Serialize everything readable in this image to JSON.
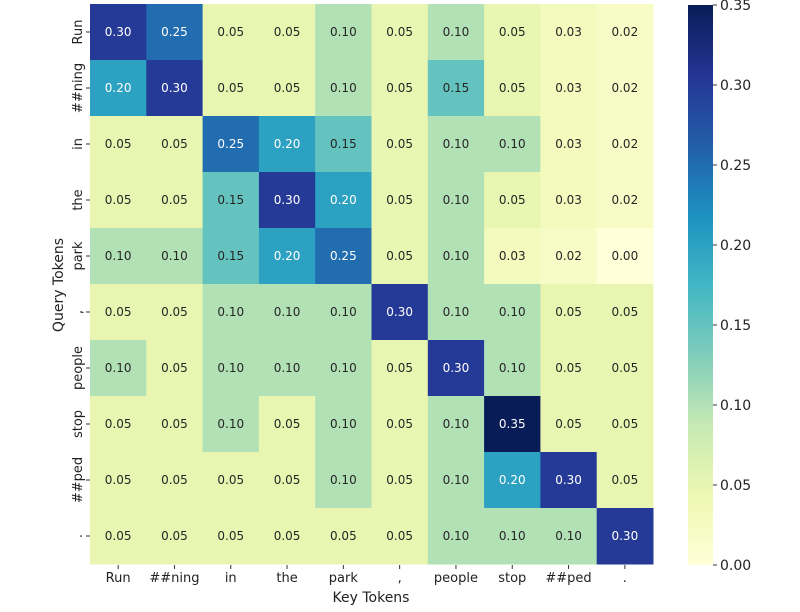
{
  "chart_data": {
    "type": "heatmap",
    "xlabel": "Key Tokens",
    "ylabel": "Query Tokens",
    "x_categories": [
      "Run",
      "##ning",
      "in",
      "the",
      "park",
      ",",
      "people",
      "stop",
      "##ped",
      "."
    ],
    "y_categories": [
      "Run",
      "##ning",
      "in",
      "the",
      "park",
      ",",
      "people",
      "stop",
      "##ped",
      "."
    ],
    "values": [
      [
        0.3,
        0.25,
        0.05,
        0.05,
        0.1,
        0.05,
        0.1,
        0.05,
        0.03,
        0.02
      ],
      [
        0.2,
        0.3,
        0.05,
        0.05,
        0.1,
        0.05,
        0.15,
        0.05,
        0.03,
        0.02
      ],
      [
        0.05,
        0.05,
        0.25,
        0.2,
        0.15,
        0.05,
        0.1,
        0.1,
        0.03,
        0.02
      ],
      [
        0.05,
        0.05,
        0.15,
        0.3,
        0.2,
        0.05,
        0.1,
        0.05,
        0.03,
        0.02
      ],
      [
        0.1,
        0.1,
        0.15,
        0.2,
        0.25,
        0.05,
        0.1,
        0.03,
        0.02,
        0.0
      ],
      [
        0.05,
        0.05,
        0.1,
        0.1,
        0.1,
        0.3,
        0.1,
        0.1,
        0.05,
        0.05
      ],
      [
        0.1,
        0.05,
        0.1,
        0.1,
        0.1,
        0.05,
        0.3,
        0.1,
        0.05,
        0.05
      ],
      [
        0.05,
        0.05,
        0.1,
        0.05,
        0.1,
        0.05,
        0.1,
        0.35,
        0.05,
        0.05
      ],
      [
        0.05,
        0.05,
        0.05,
        0.05,
        0.1,
        0.05,
        0.1,
        0.2,
        0.3,
        0.05
      ],
      [
        0.05,
        0.05,
        0.05,
        0.05,
        0.05,
        0.05,
        0.1,
        0.1,
        0.1,
        0.3
      ]
    ],
    "colormap": "YlGnBu",
    "vmin": 0.0,
    "vmax": 0.35,
    "colorbar_ticks": [
      "0.00",
      "0.05",
      "0.10",
      "0.15",
      "0.20",
      "0.25",
      "0.30",
      "0.35"
    ],
    "annotations": true
  }
}
